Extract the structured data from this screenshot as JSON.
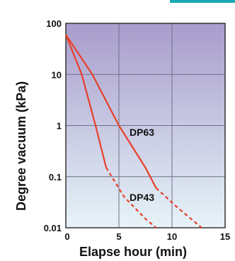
{
  "chart_data": {
    "type": "line",
    "title": "",
    "xlabel": "Elapse hour (min)",
    "ylabel": "Degree vacuum (kPa)",
    "xlim": [
      0,
      15
    ],
    "ylim": [
      0.01,
      100
    ],
    "yscale": "log",
    "grid": true,
    "x_ticks": [
      "0",
      "5",
      "10",
      "15"
    ],
    "x_tick_values": [
      0,
      5,
      10,
      15
    ],
    "y_ticks": [
      "100",
      "10",
      "1",
      "0.1",
      "0.01"
    ],
    "y_tick_values": [
      100,
      10,
      1,
      0.1,
      0.01
    ],
    "colors": {
      "plot_top": "#a89ccc",
      "plot_bottom": "#e6f4f8",
      "line": "#e8402a",
      "grid": "#6f6f8a",
      "accent_strip": "#1aa9b4"
    },
    "series": [
      {
        "name": "DP63",
        "solid": [
          [
            0,
            60
          ],
          [
            2.5,
            10
          ],
          [
            5,
            1
          ],
          [
            7.5,
            0.15
          ],
          [
            8.5,
            0.06
          ]
        ],
        "dashed": [
          [
            8.5,
            0.06
          ],
          [
            10.5,
            0.025
          ],
          [
            12.8,
            0.01
          ]
        ]
      },
      {
        "name": "DP43",
        "solid": [
          [
            0,
            60
          ],
          [
            1.5,
            10
          ],
          [
            2.8,
            1
          ],
          [
            3.8,
            0.15
          ]
        ],
        "dashed": [
          [
            3.8,
            0.15
          ],
          [
            5.5,
            0.04
          ],
          [
            7.5,
            0.015
          ],
          [
            8.5,
            0.01
          ]
        ]
      }
    ]
  }
}
